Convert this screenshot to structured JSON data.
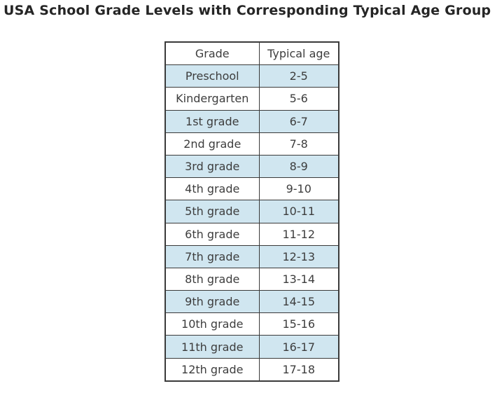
{
  "chart_data": {
    "type": "table",
    "title": "USA School Grade Levels with Corresponding Typical Age Group",
    "columns": [
      "Grade",
      "Typical age"
    ],
    "rows": [
      [
        "Preschool",
        "2-5"
      ],
      [
        "Kindergarten",
        "5-6"
      ],
      [
        "1st grade",
        "6-7"
      ],
      [
        "2nd grade",
        "7-8"
      ],
      [
        "3rd grade",
        "8-9"
      ],
      [
        "4th grade",
        "9-10"
      ],
      [
        "5th grade",
        "10-11"
      ],
      [
        "6th grade",
        "11-12"
      ],
      [
        "7th grade",
        "12-13"
      ],
      [
        "8th grade",
        "13-14"
      ],
      [
        "9th grade",
        "14-15"
      ],
      [
        "10th grade",
        "15-16"
      ],
      [
        "11th grade",
        "16-17"
      ],
      [
        "12th grade",
        "17-18"
      ]
    ],
    "layout_hints": {
      "alternating_row_highlight": "odd data rows starting with first (Preschool) are shaded",
      "header_background": "#ffffff"
    }
  },
  "colors": {
    "row_highlight": "#d0e6f0",
    "row_plain": "#ffffff",
    "border": "#3a3a3a",
    "cell_text": "#3d3d3d",
    "title_text": "#252525",
    "page_background": "#ffffff"
  }
}
